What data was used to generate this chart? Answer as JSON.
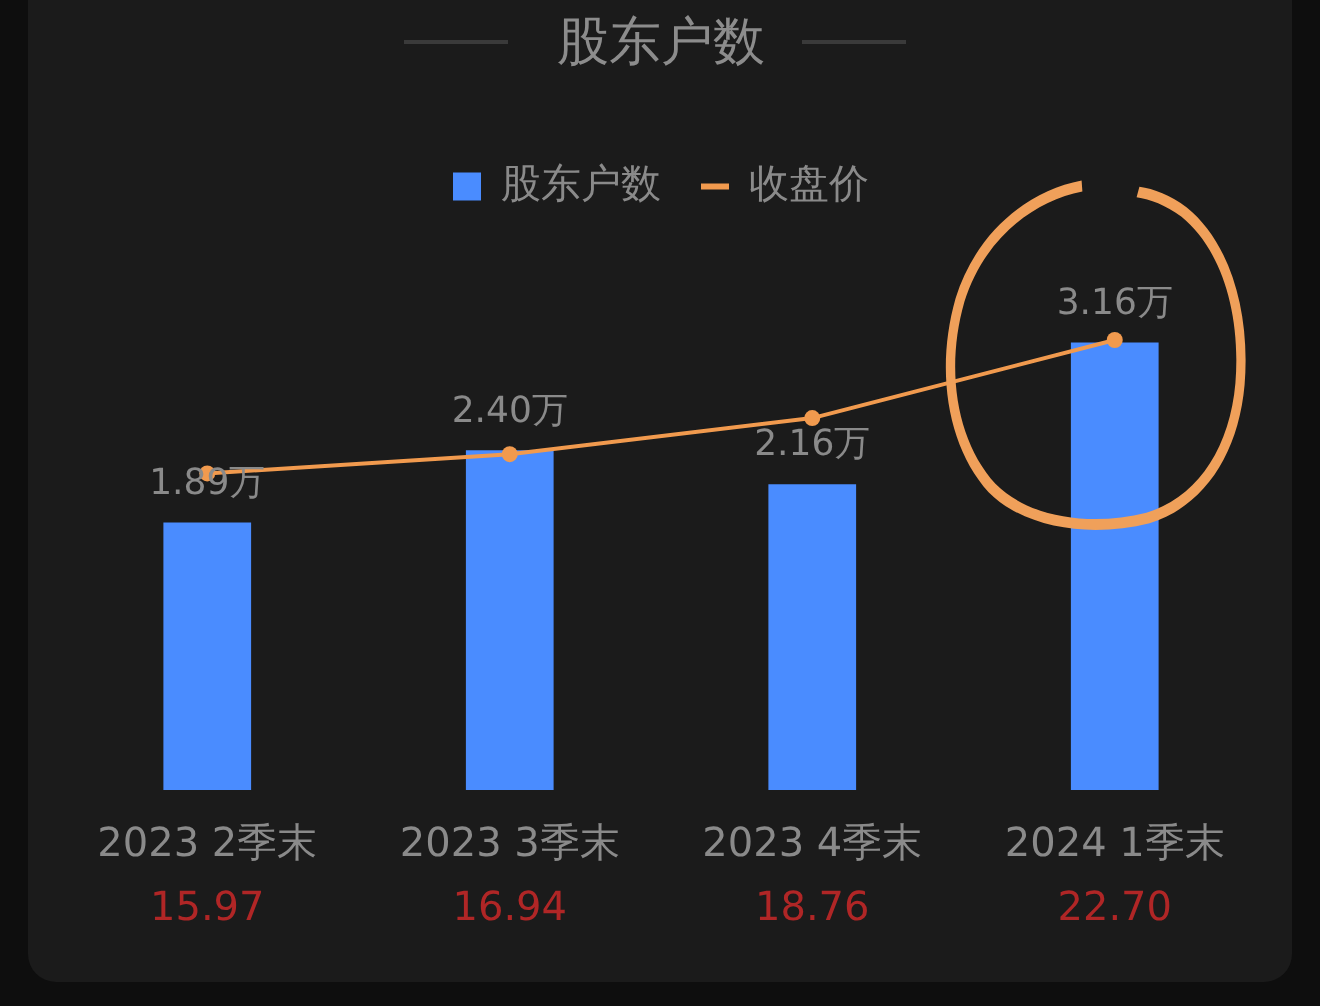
{
  "chart_data": {
    "type": "bar",
    "title": "股东户数",
    "categories": [
      "2023 2季末",
      "2023 3季末",
      "2023 4季末",
      "2024 1季末"
    ],
    "series": [
      {
        "name": "股东户数",
        "color": "#4a8cff",
        "values": [
          1.89,
          2.4,
          2.16,
          3.16
        ],
        "value_labels": [
          "1.89万",
          "2.40万",
          "2.16万",
          "3.16万"
        ]
      },
      {
        "name": "收盘价",
        "type": "line",
        "axis": "y2",
        "color": "#f19a4e",
        "values": [
          15.97,
          16.94,
          18.76,
          22.7
        ],
        "value_labels": [
          "15.97",
          "16.94",
          "18.76",
          "22.70"
        ]
      }
    ],
    "legend": "top",
    "marker": "circle",
    "line_style": "solid",
    "tick_labels": "x"
  }
}
